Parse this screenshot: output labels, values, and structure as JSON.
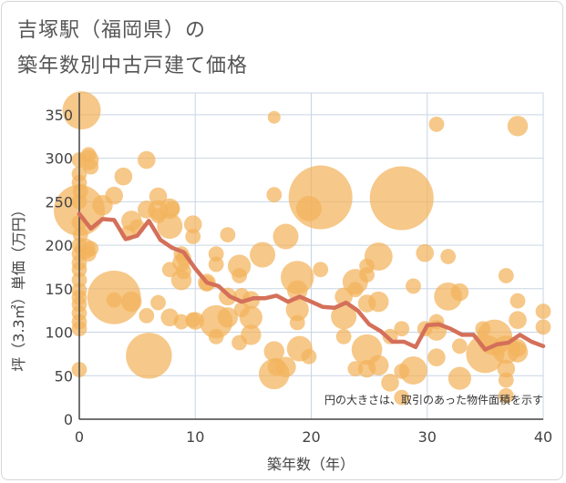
{
  "title_line1": "吉塚駅（福岡県）の",
  "title_line2": "築年数別中古戸建て価格",
  "chart_data": {
    "type": "scatter",
    "title": "吉塚駅（福岡県）の築年数別中古戸建て価格",
    "xlabel": "築年数（年）",
    "ylabel": "坪（3.3㎡）単価（万円）",
    "xlim": [
      0,
      40
    ],
    "ylim": [
      0,
      375
    ],
    "xticks": [
      0,
      10,
      20,
      30,
      40
    ],
    "yticks": [
      0,
      50,
      100,
      150,
      200,
      250,
      300,
      350
    ],
    "grid": true,
    "note": "円の大きさは、取引のあった物件面積を示す",
    "colors": {
      "bubble": "#f2b35c",
      "line": "#d4705a",
      "grid": "#c9d5e3",
      "axis": "#444444"
    },
    "bubbles": [
      {
        "x": 0.2,
        "y": 355,
        "s": 3
      },
      {
        "x": 0,
        "y": 298,
        "s": 1.2
      },
      {
        "x": 0,
        "y": 282,
        "s": 1.2
      },
      {
        "x": 0,
        "y": 272,
        "s": 1.2
      },
      {
        "x": 0.1,
        "y": 262,
        "s": 1.2
      },
      {
        "x": 0,
        "y": 250,
        "s": 1.2
      },
      {
        "x": 0,
        "y": 240,
        "s": 4
      },
      {
        "x": 0,
        "y": 226,
        "s": 1.2
      },
      {
        "x": 0.1,
        "y": 212,
        "s": 1.2
      },
      {
        "x": 0,
        "y": 200,
        "s": 1.2
      },
      {
        "x": 0,
        "y": 190,
        "s": 1.2
      },
      {
        "x": 0,
        "y": 180,
        "s": 1.2
      },
      {
        "x": 0,
        "y": 172,
        "s": 1.2
      },
      {
        "x": 0,
        "y": 160,
        "s": 1.2
      },
      {
        "x": 0,
        "y": 148,
        "s": 1.2
      },
      {
        "x": 0,
        "y": 140,
        "s": 1.2
      },
      {
        "x": 0,
        "y": 132,
        "s": 1.2
      },
      {
        "x": 0,
        "y": 122,
        "s": 1.2
      },
      {
        "x": 0,
        "y": 112,
        "s": 1.2
      },
      {
        "x": 0,
        "y": 104,
        "s": 1.2
      },
      {
        "x": 0,
        "y": 57,
        "s": 1.2
      },
      {
        "x": 0.5,
        "y": 196,
        "s": 1.6
      },
      {
        "x": 0.8,
        "y": 190,
        "s": 1.2
      },
      {
        "x": 0.8,
        "y": 298,
        "s": 1.6
      },
      {
        "x": 0.8,
        "y": 304,
        "s": 1.2
      },
      {
        "x": 1,
        "y": 290,
        "s": 1.2
      },
      {
        "x": 1,
        "y": 196,
        "s": 1.2
      },
      {
        "x": 2,
        "y": 246,
        "s": 1.6
      },
      {
        "x": 3,
        "y": 257,
        "s": 1.4
      },
      {
        "x": 3,
        "y": 140,
        "s": 4.2
      },
      {
        "x": 3,
        "y": 137,
        "s": 1.2
      },
      {
        "x": 3.8,
        "y": 279,
        "s": 1.4
      },
      {
        "x": 4.2,
        "y": 214,
        "s": 1.2
      },
      {
        "x": 4.5,
        "y": 228,
        "s": 1.6
      },
      {
        "x": 4.5,
        "y": 135,
        "s": 1.6
      },
      {
        "x": 5,
        "y": 221,
        "s": 1.2
      },
      {
        "x": 5.8,
        "y": 298,
        "s": 1.4
      },
      {
        "x": 5.8,
        "y": 241,
        "s": 1.4
      },
      {
        "x": 5.8,
        "y": 119,
        "s": 1.2
      },
      {
        "x": 6,
        "y": 73,
        "s": 3.6
      },
      {
        "x": 6.8,
        "y": 256,
        "s": 1.4
      },
      {
        "x": 6.8,
        "y": 240,
        "s": 1.6
      },
      {
        "x": 6.8,
        "y": 234,
        "s": 1.2
      },
      {
        "x": 6.8,
        "y": 134,
        "s": 1.2
      },
      {
        "x": 7.8,
        "y": 242,
        "s": 1.6
      },
      {
        "x": 7.8,
        "y": 222,
        "s": 2
      },
      {
        "x": 7.8,
        "y": 172,
        "s": 1.2
      },
      {
        "x": 7.8,
        "y": 117,
        "s": 1.4
      },
      {
        "x": 8,
        "y": 242,
        "s": 1.2
      },
      {
        "x": 8.8,
        "y": 190,
        "s": 1.2
      },
      {
        "x": 8.8,
        "y": 180,
        "s": 1.4
      },
      {
        "x": 8.8,
        "y": 160,
        "s": 1.6
      },
      {
        "x": 8.8,
        "y": 112,
        "s": 1.2
      },
      {
        "x": 9,
        "y": 185,
        "s": 1.2
      },
      {
        "x": 9,
        "y": 170,
        "s": 1.2
      },
      {
        "x": 9.8,
        "y": 224,
        "s": 1.4
      },
      {
        "x": 9.8,
        "y": 210,
        "s": 1.2
      },
      {
        "x": 9.8,
        "y": 114,
        "s": 1.2
      },
      {
        "x": 10,
        "y": 113,
        "s": 1.4
      },
      {
        "x": 11,
        "y": 157,
        "s": 1.4
      },
      {
        "x": 11,
        "y": 156,
        "s": 1.2
      },
      {
        "x": 11.8,
        "y": 190,
        "s": 1.2
      },
      {
        "x": 11.8,
        "y": 178,
        "s": 1.2
      },
      {
        "x": 11.8,
        "y": 112,
        "s": 2.6
      },
      {
        "x": 11.8,
        "y": 95,
        "s": 1.2
      },
      {
        "x": 12.8,
        "y": 212,
        "s": 1.2
      },
      {
        "x": 12.8,
        "y": 141,
        "s": 1.4
      },
      {
        "x": 12.8,
        "y": 117,
        "s": 1.6
      },
      {
        "x": 13.8,
        "y": 176,
        "s": 1.8
      },
      {
        "x": 13.8,
        "y": 165,
        "s": 1.2
      },
      {
        "x": 13.8,
        "y": 88,
        "s": 1.2
      },
      {
        "x": 14,
        "y": 142,
        "s": 1.2
      },
      {
        "x": 14,
        "y": 126,
        "s": 1.2
      },
      {
        "x": 14.8,
        "y": 137,
        "s": 1.4
      },
      {
        "x": 14.8,
        "y": 117,
        "s": 1.8
      },
      {
        "x": 14.8,
        "y": 97,
        "s": 1.6
      },
      {
        "x": 15.8,
        "y": 189,
        "s": 2
      },
      {
        "x": 16.8,
        "y": 347,
        "s": 1
      },
      {
        "x": 16.8,
        "y": 258,
        "s": 1.2
      },
      {
        "x": 16.8,
        "y": 78,
        "s": 1.6
      },
      {
        "x": 16.8,
        "y": 52,
        "s": 2.4
      },
      {
        "x": 17,
        "y": 60,
        "s": 1.4
      },
      {
        "x": 17.8,
        "y": 210,
        "s": 2
      },
      {
        "x": 17.8,
        "y": 60,
        "s": 1.6
      },
      {
        "x": 18.8,
        "y": 163,
        "s": 2.6
      },
      {
        "x": 18.8,
        "y": 148,
        "s": 1.6
      },
      {
        "x": 18.8,
        "y": 126,
        "s": 1.8
      },
      {
        "x": 18.8,
        "y": 111,
        "s": 1.2
      },
      {
        "x": 19,
        "y": 81,
        "s": 2
      },
      {
        "x": 19.8,
        "y": 242,
        "s": 2
      },
      {
        "x": 19.8,
        "y": 72,
        "s": 1.2
      },
      {
        "x": 20.8,
        "y": 255,
        "s": 5
      },
      {
        "x": 20.8,
        "y": 172,
        "s": 1.2
      },
      {
        "x": 22.8,
        "y": 141,
        "s": 1.4
      },
      {
        "x": 22.8,
        "y": 95,
        "s": 1.2
      },
      {
        "x": 22.8,
        "y": 118,
        "s": 2
      },
      {
        "x": 23.8,
        "y": 158,
        "s": 2
      },
      {
        "x": 23.8,
        "y": 149,
        "s": 1.2
      },
      {
        "x": 23.8,
        "y": 58,
        "s": 1.2
      },
      {
        "x": 24.8,
        "y": 80,
        "s": 2.4
      },
      {
        "x": 24.8,
        "y": 176,
        "s": 1.2
      },
      {
        "x": 24.8,
        "y": 166,
        "s": 1.2
      },
      {
        "x": 24.8,
        "y": 133,
        "s": 1.4
      },
      {
        "x": 24.8,
        "y": 58,
        "s": 1.4
      },
      {
        "x": 25.8,
        "y": 187,
        "s": 2.2
      },
      {
        "x": 25.8,
        "y": 135,
        "s": 1.6
      },
      {
        "x": 25.8,
        "y": 62,
        "s": 1.6
      },
      {
        "x": 26.8,
        "y": 95,
        "s": 1.2
      },
      {
        "x": 26.8,
        "y": 42,
        "s": 1.4
      },
      {
        "x": 27.8,
        "y": 254,
        "s": 5
      },
      {
        "x": 27.8,
        "y": 104,
        "s": 1.2
      },
      {
        "x": 27.8,
        "y": 55,
        "s": 1.2
      },
      {
        "x": 27.8,
        "y": 25,
        "s": 1.2
      },
      {
        "x": 28.8,
        "y": 153,
        "s": 1.2
      },
      {
        "x": 28.8,
        "y": 56,
        "s": 2.2
      },
      {
        "x": 29.8,
        "y": 191,
        "s": 1.4
      },
      {
        "x": 29.8,
        "y": 104,
        "s": 1.2
      },
      {
        "x": 30.8,
        "y": 339,
        "s": 1.2
      },
      {
        "x": 30.8,
        "y": 112,
        "s": 1.2
      },
      {
        "x": 30.8,
        "y": 102,
        "s": 1.6
      },
      {
        "x": 30.8,
        "y": 71,
        "s": 1.4
      },
      {
        "x": 31.8,
        "y": 187,
        "s": 1.2
      },
      {
        "x": 31.8,
        "y": 141,
        "s": 2.2
      },
      {
        "x": 32.8,
        "y": 146,
        "s": 1.4
      },
      {
        "x": 32.8,
        "y": 84,
        "s": 1.2
      },
      {
        "x": 32.8,
        "y": 47,
        "s": 1.8
      },
      {
        "x": 34.8,
        "y": 104,
        "s": 1.2
      },
      {
        "x": 35,
        "y": 75,
        "s": 3
      },
      {
        "x": 35.8,
        "y": 94,
        "s": 2.8
      },
      {
        "x": 36.8,
        "y": 165,
        "s": 1.2
      },
      {
        "x": 36.8,
        "y": 80,
        "s": 2.2
      },
      {
        "x": 36.8,
        "y": 58,
        "s": 1.4
      },
      {
        "x": 36.8,
        "y": 45,
        "s": 1.2
      },
      {
        "x": 36.8,
        "y": 27,
        "s": 1.2
      },
      {
        "x": 37.8,
        "y": 337,
        "s": 1.6
      },
      {
        "x": 37.8,
        "y": 136,
        "s": 1.2
      },
      {
        "x": 37.8,
        "y": 114,
        "s": 1.4
      },
      {
        "x": 37.8,
        "y": 82,
        "s": 1.4
      },
      {
        "x": 37.8,
        "y": 77,
        "s": 1.6
      },
      {
        "x": 40,
        "y": 124,
        "s": 1.2
      },
      {
        "x": 40,
        "y": 106,
        "s": 1.2
      }
    ],
    "series": [
      {
        "type": "line",
        "x": [
          0,
          1,
          2,
          3,
          4,
          5,
          6,
          7,
          8,
          9,
          10,
          11,
          12,
          13,
          14,
          15,
          16,
          17,
          18,
          19,
          20,
          21,
          22,
          23,
          24,
          25,
          26,
          27,
          28,
          29,
          30,
          31,
          32,
          33,
          34,
          35,
          36,
          37,
          38,
          39,
          40
        ],
        "values": [
          236,
          219,
          230,
          229,
          207,
          211,
          228,
          206,
          197,
          192,
          173,
          157,
          153,
          141,
          135,
          139,
          139,
          142,
          135,
          141,
          135,
          129,
          128,
          134,
          125,
          109,
          101,
          89,
          89,
          83,
          108,
          109,
          104,
          97,
          97,
          80,
          86,
          88,
          97,
          89,
          84
        ]
      }
    ]
  }
}
